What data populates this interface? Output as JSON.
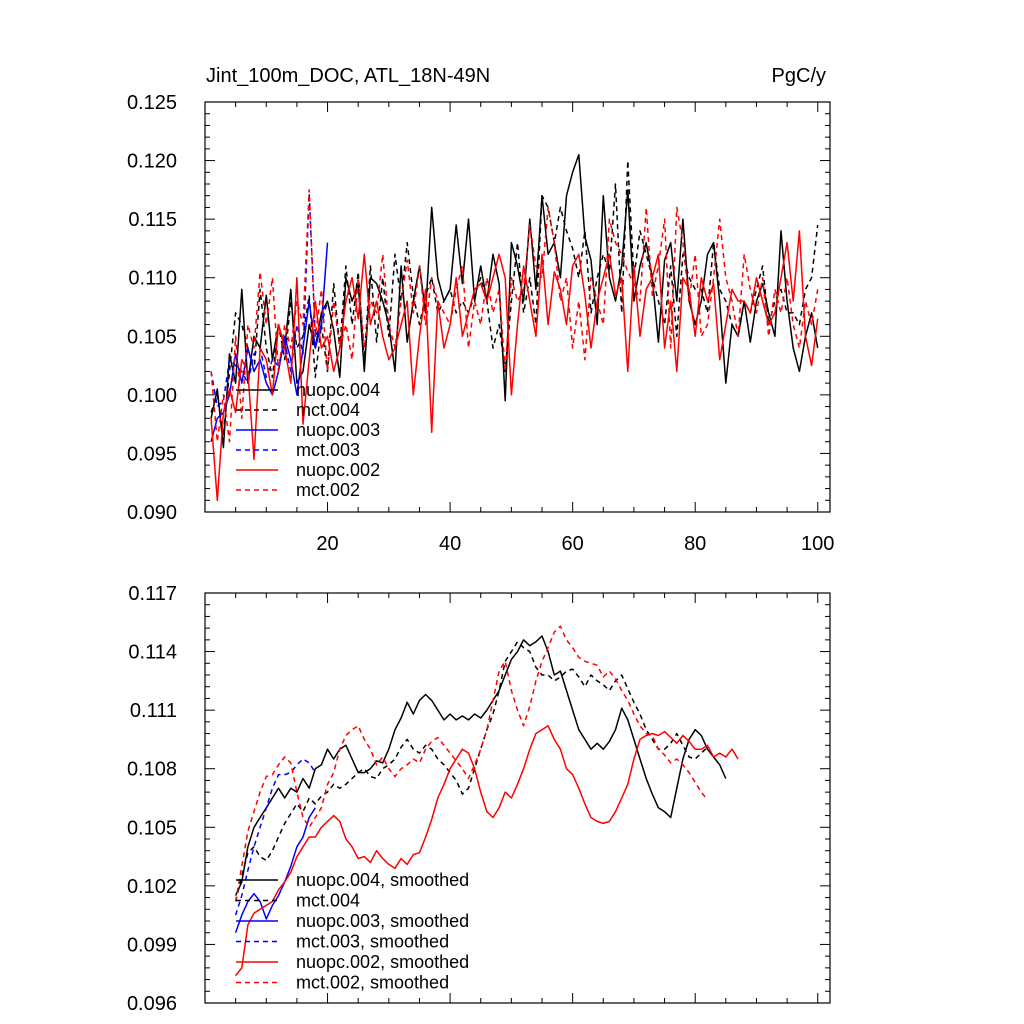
{
  "figure": {
    "title_left": "Jint_100m_DOC, ATL_18N-49N",
    "title_right": "PgC/y"
  },
  "chart_data": [
    {
      "type": "line",
      "panel": "top",
      "title": "Jint_100m_DOC, ATL_18N-49N",
      "units": "PgC/y",
      "xlim": [
        0,
        102
      ],
      "ylim": [
        0.09,
        0.125
      ],
      "xticks": [
        20,
        40,
        60,
        80,
        100
      ],
      "xtick_labels": [
        "20",
        "40",
        "60",
        "80",
        "100"
      ],
      "yticks": [
        0.09,
        0.095,
        0.1,
        0.105,
        0.11,
        0.115,
        0.12,
        0.125
      ],
      "ytick_labels": [
        "0.090",
        "0.095",
        "0.100",
        "0.105",
        "0.110",
        "0.115",
        "0.120",
        "0.125"
      ],
      "legend_position": "bottom-left",
      "series": [
        {
          "name": "nuopc.004",
          "color": "#000000",
          "dash": "solid",
          "x_start": 1,
          "values": [
            0.098,
            0.1005,
            0.0955,
            0.1035,
            0.101,
            0.109,
            0.101,
            0.105,
            0.104,
            0.1085,
            0.103,
            0.106,
            0.104,
            0.109,
            0.101,
            0.102,
            0.106,
            0.104,
            0.107,
            0.108,
            0.1055,
            0.1015,
            0.11,
            0.108,
            0.1095,
            0.102,
            0.11,
            0.1095,
            0.108,
            0.106,
            0.102,
            0.111,
            0.1045,
            0.108,
            0.111,
            0.107,
            0.116,
            0.11,
            0.108,
            0.109,
            0.1145,
            0.1095,
            0.115,
            0.108,
            0.111,
            0.108,
            0.112,
            0.1095,
            0.0995,
            0.113,
            0.111,
            0.108,
            0.115,
            0.109,
            0.117,
            0.112,
            0.113,
            0.11,
            0.117,
            0.119,
            0.1205,
            0.1135,
            0.1115,
            0.106,
            0.117,
            0.11,
            0.108,
            0.111,
            0.1175,
            0.108,
            0.111,
            0.113,
            0.11,
            0.1045,
            0.1115,
            0.113,
            0.108,
            0.115,
            0.108,
            0.106,
            0.108,
            0.112,
            0.113,
            0.108,
            0.101,
            0.106,
            0.105,
            0.108,
            0.1045,
            0.108,
            0.1095,
            0.107,
            0.105,
            0.114,
            0.108,
            0.104,
            0.102,
            0.105,
            0.107,
            0.104
          ]
        },
        {
          "name": "mct.004",
          "color": "#000000",
          "dash": "dashed",
          "x_start": 1,
          "values": [
            0.0985,
            0.1,
            0.0965,
            0.102,
            0.107,
            0.106,
            0.104,
            0.102,
            0.109,
            0.104,
            0.1015,
            0.106,
            0.103,
            0.108,
            0.104,
            0.105,
            0.1085,
            0.1015,
            0.106,
            0.102,
            0.1095,
            0.104,
            0.111,
            0.106,
            0.1105,
            0.103,
            0.111,
            0.1045,
            0.11,
            0.105,
            0.112,
            0.108,
            0.113,
            0.1085,
            0.106,
            0.1085,
            0.11,
            0.107,
            0.108,
            0.109,
            0.107,
            0.108,
            0.107,
            0.1085,
            0.11,
            0.108,
            0.104,
            0.106,
            0.102,
            0.108,
            0.113,
            0.107,
            0.11,
            0.106,
            0.117,
            0.116,
            0.113,
            0.116,
            0.114,
            0.1125,
            0.11,
            0.114,
            0.107,
            0.11,
            0.112,
            0.1105,
            0.118,
            0.107,
            0.12,
            0.11,
            0.114,
            0.112,
            0.11,
            0.108,
            0.106,
            0.111,
            0.105,
            0.112,
            0.11,
            0.109,
            0.109,
            0.107,
            0.113,
            0.109,
            0.108,
            0.106,
            0.105,
            0.108,
            0.107,
            0.109,
            0.111,
            0.106,
            0.108,
            0.109,
            0.107,
            0.107,
            0.106,
            0.109,
            0.11,
            0.1145
          ]
        },
        {
          "name": "nuopc.003",
          "color": "#0000ff",
          "dash": "solid",
          "x_start": 1,
          "values": [
            0.096,
            0.098,
            0.0985,
            0.1,
            0.1035,
            0.101,
            0.104,
            0.102,
            0.103,
            0.101,
            0.1,
            0.102,
            0.105,
            0.103,
            0.1,
            0.104,
            0.108,
            0.104,
            0.106,
            0.113
          ]
        },
        {
          "name": "mct.003",
          "color": "#0000ff",
          "dash": "dashed",
          "x_start": 1,
          "values": [
            0.102,
            0.099,
            0.0995,
            0.103,
            0.1025,
            0.102,
            0.101,
            0.1035,
            0.104,
            0.1015,
            0.103,
            0.1025,
            0.1045,
            0.102,
            0.106,
            0.1035,
            0.1172,
            0.105,
            0.106,
            0.108
          ]
        },
        {
          "name": "nuopc.002",
          "color": "#ff0000",
          "dash": "solid",
          "x_start": 1,
          "values": [
            0.098,
            0.091,
            0.0985,
            0.1005,
            0.0985,
            0.103,
            0.102,
            0.0945,
            0.104,
            0.103,
            0.1,
            0.106,
            0.104,
            0.101,
            0.11,
            0.0975,
            0.103,
            0.108,
            0.104,
            0.105,
            0.102,
            0.104,
            0.108,
            0.11,
            0.1065,
            0.112,
            0.106,
            0.108,
            0.105,
            0.103,
            0.104,
            0.106,
            0.108,
            0.1,
            0.105,
            0.109,
            0.0968,
            0.108,
            0.104,
            0.106,
            0.11,
            0.105,
            0.107,
            0.109,
            0.1095,
            0.108,
            0.11,
            0.112,
            0.11,
            0.1,
            0.106,
            0.111,
            0.108,
            0.105,
            0.112,
            0.106,
            0.1105,
            0.109,
            0.106,
            0.111,
            0.112,
            0.1085,
            0.104,
            0.108,
            0.11,
            0.112,
            0.1085,
            0.11,
            0.102,
            0.111,
            0.105,
            0.109,
            0.11,
            0.112,
            0.104,
            0.108,
            0.102,
            0.11,
            0.109,
            0.105,
            0.11,
            0.108,
            0.1095,
            0.103,
            0.106,
            0.109,
            0.108,
            0.108,
            0.107,
            0.11,
            0.108,
            0.106,
            0.107,
            0.11,
            0.113,
            0.108,
            0.114,
            0.105,
            0.1025,
            0.1065
          ]
        },
        {
          "name": "mct.002",
          "color": "#ff0000",
          "dash": "dashed",
          "x_start": 1,
          "values": [
            0.102,
            0.096,
            0.1,
            0.096,
            0.105,
            0.098,
            0.106,
            0.104,
            0.1105,
            0.106,
            0.11,
            0.102,
            0.106,
            0.104,
            0.108,
            0.106,
            0.1175,
            0.105,
            0.109,
            0.102,
            0.108,
            0.104,
            0.106,
            0.103,
            0.11,
            0.104,
            0.108,
            0.107,
            0.112,
            0.106,
            0.104,
            0.108,
            0.1115,
            0.107,
            0.111,
            0.106,
            0.11,
            0.108,
            0.107,
            0.106,
            0.109,
            0.111,
            0.104,
            0.108,
            0.106,
            0.11,
            0.107,
            0.109,
            0.102,
            0.11,
            0.108,
            0.109,
            0.1145,
            0.111,
            0.11,
            0.116,
            0.113,
            0.108,
            0.11,
            0.104,
            0.108,
            0.103,
            0.11,
            0.108,
            0.106,
            0.115,
            0.113,
            0.112,
            0.1105,
            0.1095,
            0.108,
            0.116,
            0.1085,
            0.111,
            0.115,
            0.104,
            0.116,
            0.113,
            0.108,
            0.112,
            0.105,
            0.106,
            0.11,
            0.115,
            0.11,
            0.108,
            0.105,
            0.112,
            0.109,
            0.107,
            0.11,
            0.105,
            0.109,
            0.107,
            0.11,
            0.106,
            0.104,
            0.108,
            0.106,
            0.109
          ]
        }
      ]
    },
    {
      "type": "line",
      "panel": "bottom",
      "title": "",
      "xlim": [
        0,
        102
      ],
      "ylim": [
        0.096,
        0.117
      ],
      "xticks": [
        20,
        40,
        60,
        80,
        100
      ],
      "xtick_labels": [],
      "yticks": [
        0.096,
        0.099,
        0.102,
        0.105,
        0.108,
        0.111,
        0.114,
        0.117
      ],
      "ytick_labels": [
        "0.096",
        "0.099",
        "0.102",
        "0.105",
        "0.108",
        "0.111",
        "0.114",
        "0.117"
      ],
      "legend_position": "bottom-left",
      "series": [
        {
          "name": "nuopc.004, smoothed",
          "color": "#000000",
          "dash": "solid",
          "x_start": 5,
          "values": [
            0.1015,
            0.1022,
            0.104,
            0.105,
            0.1055,
            0.106,
            0.1065,
            0.107,
            0.1065,
            0.107,
            0.1068,
            0.1075,
            0.107,
            0.108,
            0.1082,
            0.109,
            0.1085,
            0.109,
            0.1092,
            0.1085,
            0.1078,
            0.1078,
            0.108,
            0.1084,
            0.1083,
            0.109,
            0.11,
            0.1106,
            0.1114,
            0.1108,
            0.1115,
            0.1118,
            0.1115,
            0.111,
            0.1105,
            0.1108,
            0.1105,
            0.1107,
            0.1105,
            0.1108,
            0.1106,
            0.111,
            0.1115,
            0.112,
            0.1128,
            0.1136,
            0.114,
            0.1146,
            0.1143,
            0.1145,
            0.1148,
            0.114,
            0.1128,
            0.113,
            0.112,
            0.111,
            0.11,
            0.1095,
            0.109,
            0.1093,
            0.109,
            0.1094,
            0.11,
            0.1111,
            0.1105,
            0.1095,
            0.1085,
            0.1075,
            0.1067,
            0.106,
            0.1058,
            0.1055,
            0.107,
            0.1085,
            0.1095,
            0.11,
            0.1097,
            0.109,
            0.1086,
            0.1082,
            0.1075
          ]
        },
        {
          "name": "mct.004",
          "color": "#000000",
          "dash": "dashed",
          "x_start": 5,
          "values": [
            0.1012,
            0.1025,
            0.1037,
            0.104,
            0.1035,
            0.1033,
            0.1038,
            0.1045,
            0.1052,
            0.1057,
            0.1062,
            0.1058,
            0.1065,
            0.1062,
            0.1066,
            0.1068,
            0.1072,
            0.107,
            0.1072,
            0.1075,
            0.1078,
            0.108,
            0.1076,
            0.1075,
            0.108,
            0.1082,
            0.1085,
            0.1091,
            0.1095,
            0.109,
            0.1088,
            0.1092,
            0.109,
            0.1085,
            0.1082,
            0.1078,
            0.1074,
            0.1067,
            0.107,
            0.108,
            0.109,
            0.11,
            0.1108,
            0.112,
            0.1135,
            0.114,
            0.1145,
            0.1142,
            0.114,
            0.1132,
            0.1128,
            0.1128,
            0.1125,
            0.1127,
            0.113,
            0.1131,
            0.1127,
            0.1122,
            0.1128,
            0.1125,
            0.1123,
            0.112,
            0.1125,
            0.1128,
            0.1121,
            0.1114,
            0.1108,
            0.11,
            0.1095,
            0.109,
            0.109,
            0.1093,
            0.1098,
            0.1092,
            0.1086,
            0.1085,
            0.1088,
            0.1091
          ]
        },
        {
          "name": "nuopc.003, smoothed",
          "color": "#0000ff",
          "dash": "solid",
          "x_start": 5,
          "values": [
            0.0996,
            0.1005,
            0.1012,
            0.1016,
            0.1012,
            0.1003,
            0.101,
            0.1015,
            0.1022,
            0.103,
            0.104,
            0.1045,
            0.1055,
            0.106
          ]
        },
        {
          "name": "mct.003, smoothed",
          "color": "#0000ff",
          "dash": "dashed",
          "x_start": 5,
          "values": [
            0.1005,
            0.1015,
            0.1028,
            0.104,
            0.105,
            0.106,
            0.107,
            0.1077,
            0.1077,
            0.1078,
            0.1082,
            0.1085,
            0.1083,
            0.1078
          ]
        },
        {
          "name": "nuopc.002, smoothed",
          "color": "#ff0000",
          "dash": "solid",
          "x_start": 5,
          "values": [
            0.0974,
            0.0978,
            0.1,
            0.1006,
            0.1008,
            0.101,
            0.1012,
            0.1018,
            0.1022,
            0.1027,
            0.1035,
            0.104,
            0.1045,
            0.1045,
            0.105,
            0.1053,
            0.1056,
            0.1053,
            0.1044,
            0.104,
            0.1034,
            0.1035,
            0.1032,
            0.1038,
            0.1034,
            0.1031,
            0.1029,
            0.1034,
            0.1031,
            0.1036,
            0.1037,
            0.1045,
            0.1054,
            0.1065,
            0.1072,
            0.108,
            0.1085,
            0.109,
            0.1088,
            0.108,
            0.1068,
            0.1058,
            0.1055,
            0.106,
            0.1068,
            0.1065,
            0.1072,
            0.108,
            0.109,
            0.1098,
            0.11,
            0.1102,
            0.1095,
            0.109,
            0.108,
            0.1077,
            0.107,
            0.1062,
            0.1055,
            0.1053,
            0.1052,
            0.1053,
            0.1058,
            0.1065,
            0.1072,
            0.1085,
            0.1095,
            0.1097,
            0.1098,
            0.1097,
            0.1099,
            0.1096,
            0.1093,
            0.1097,
            0.1094,
            0.109,
            0.109,
            0.1092,
            0.1086,
            0.1088,
            0.1086,
            0.109,
            0.1085
          ]
        },
        {
          "name": "mct.002, smoothed",
          "color": "#ff0000",
          "dash": "dashed",
          "x_start": 5,
          "values": [
            0.1012,
            0.103,
            0.1048,
            0.1058,
            0.1068,
            0.1076,
            0.1077,
            0.1082,
            0.1086,
            0.1083,
            0.1068,
            0.1055,
            0.105,
            0.1055,
            0.106,
            0.1072,
            0.1078,
            0.109,
            0.1097,
            0.11,
            0.1102,
            0.1095,
            0.109,
            0.1082,
            0.1086,
            0.108,
            0.1076,
            0.108,
            0.1082,
            0.1085,
            0.1083,
            0.109,
            0.1094,
            0.1096,
            0.1092,
            0.1088,
            0.1084,
            0.108,
            0.1075,
            0.1082,
            0.109,
            0.11,
            0.1115,
            0.113,
            0.1135,
            0.112,
            0.111,
            0.1102,
            0.1112,
            0.1125,
            0.1135,
            0.1142,
            0.115,
            0.1153,
            0.1146,
            0.1142,
            0.1137,
            0.1135,
            0.1134,
            0.1133,
            0.1127,
            0.113,
            0.1126,
            0.112,
            0.1115,
            0.1108,
            0.1102,
            0.1098,
            0.1097,
            0.109,
            0.1087,
            0.1083,
            0.1085,
            0.1082,
            0.1078,
            0.1073,
            0.1068,
            0.1064
          ]
        }
      ]
    }
  ]
}
